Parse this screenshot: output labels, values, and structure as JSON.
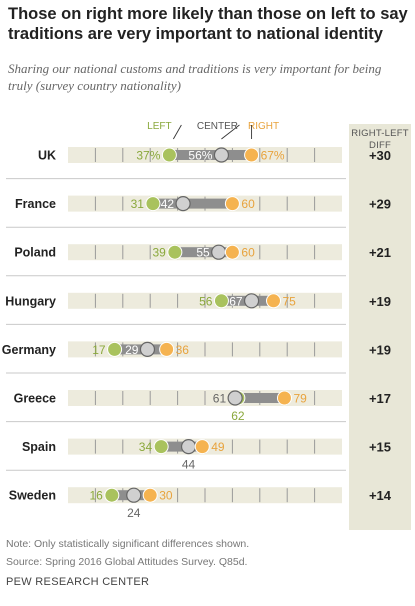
{
  "title": "Those on right more likely than those on left to say traditions are very important to national identity",
  "subtitle": "Sharing our national customs and traditions is very important for being truly (survey country nationality)",
  "diff_header": [
    "RIGHT-LEFT",
    "DIFF"
  ],
  "legend": {
    "left": "LEFT",
    "center": "CENTER",
    "right": "RIGHT"
  },
  "colors": {
    "left": "#a9c25d",
    "center": "#d0d0d0",
    "right": "#f5b350",
    "left_text": "#8aa83c",
    "center_text": "#666666",
    "right_text": "#e8a33d",
    "band": "#edebdd",
    "bar": "#8e8e8e"
  },
  "notes": [
    "Note: Only statistically significant differences shown.",
    "Source: Spring 2016 Global Attitudes Survey. Q85d."
  ],
  "brand": "PEW RESEARCH CENTER",
  "chart_data": {
    "type": "dot",
    "x_range": [
      0,
      100
    ],
    "series": [
      {
        "name": "LEFT",
        "color": "#a9c25d"
      },
      {
        "name": "CENTER",
        "color": "#d0d0d0"
      },
      {
        "name": "RIGHT",
        "color": "#f5b350"
      }
    ],
    "rows": [
      {
        "country": "UK",
        "left": 37,
        "center": 56,
        "right": 67,
        "left_label": "37%",
        "center_label": "56%",
        "right_label": "67%",
        "diff": "+30",
        "center_below": false
      },
      {
        "country": "France",
        "left": 31,
        "center": 42,
        "right": 60,
        "left_label": "31",
        "center_label": "42",
        "right_label": "60",
        "diff": "+29",
        "center_below": false
      },
      {
        "country": "Poland",
        "left": 39,
        "center": 55,
        "right": 60,
        "left_label": "39",
        "center_label": "55",
        "right_label": "60",
        "diff": "+21",
        "center_below": false
      },
      {
        "country": "Hungary",
        "left": 56,
        "center": 67,
        "right": 75,
        "left_label": "56",
        "center_label": "67",
        "right_label": "75",
        "diff": "+19",
        "center_below": false
      },
      {
        "country": "Germany",
        "left": 17,
        "center": 29,
        "right": 36,
        "left_label": "17",
        "center_label": "29",
        "right_label": "36",
        "diff": "+19",
        "center_below": false
      },
      {
        "country": "Greece",
        "left": 62,
        "center": 61,
        "right": 79,
        "left_label": "62",
        "center_label": "61",
        "right_label": "79",
        "diff": "+17",
        "center_below": false,
        "left_below": true
      },
      {
        "country": "Spain",
        "left": 34,
        "center": 44,
        "right": 49,
        "left_label": "34",
        "center_label": "44",
        "right_label": "49",
        "diff": "+15",
        "center_below": true
      },
      {
        "country": "Sweden",
        "left": 16,
        "center": 24,
        "right": 30,
        "left_label": "16",
        "center_label": "24",
        "right_label": "30",
        "diff": "+14",
        "center_below": true
      }
    ]
  }
}
